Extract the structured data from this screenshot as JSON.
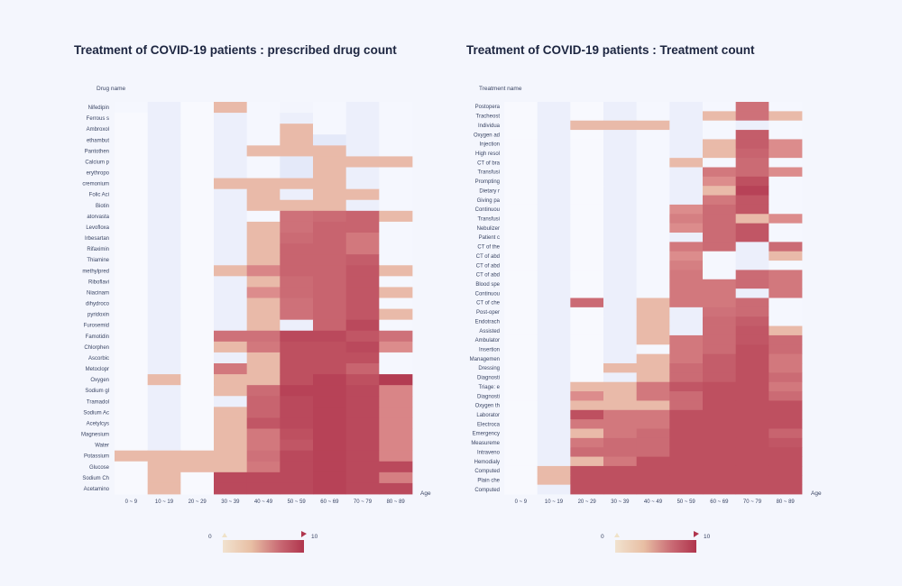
{
  "chart_data": [
    {
      "type": "heatmap",
      "title": "Treatment of COVID-19 patients : prescribed drug count",
      "ylabel": "Drug name",
      "xlabel": "Age",
      "colorbar": {
        "min": 0,
        "max": 10,
        "colors": [
          "#dde3f7",
          "#ecd0b7",
          "#b0354d"
        ]
      },
      "columns": [
        "0 ~ 9",
        "10 ~ 19",
        "20 ~ 29",
        "30 ~ 39",
        "40 ~ 49",
        "50 ~ 59",
        "60 ~ 69",
        "70 ~ 79",
        "80 ~ 89"
      ],
      "rows": [
        "Nifedipin",
        "Ferrous s",
        "Ambroxol",
        "ethambut",
        "Pantothen",
        "Calcium p",
        "erythropo",
        "cremonium",
        "Folic Aci",
        "Biotin",
        "atorvasta",
        "Levofloxa",
        "Irbesartan",
        "Rifaximin",
        "Thiamine",
        "methylpred",
        "Riboflavi",
        "Niacinam",
        "dihydroco",
        "pyridoxin",
        "Furosemid",
        "Famotidin",
        "Chlorphen",
        "Ascorbic",
        "Metoclopr",
        "Oxygen",
        "Sodium gl",
        "Tramadol",
        "Sodium Ac",
        "Acetylcys",
        "Magnesium",
        "Water",
        "Potassium",
        "Glucose",
        "Sodium Ch",
        "Acetamino"
      ],
      "values": [
        [
          0.2,
          0.6,
          0.1,
          3.0,
          0.2,
          0.3,
          0.2,
          0.6,
          0.2
        ],
        [
          0.1,
          0.6,
          0.1,
          0.6,
          0.2,
          0.6,
          0.2,
          0.6,
          0.2
        ],
        [
          0.1,
          0.6,
          0.1,
          0.6,
          0.2,
          3.0,
          0.2,
          0.6,
          0.2
        ],
        [
          0.1,
          0.6,
          0.1,
          0.6,
          0.2,
          3.0,
          0.9,
          0.6,
          0.2
        ],
        [
          0.1,
          0.6,
          0.1,
          0.6,
          2.9,
          3.0,
          3.0,
          0.6,
          0.2
        ],
        [
          0.1,
          0.6,
          0.1,
          0.6,
          0.2,
          0.9,
          3.0,
          3.0,
          3.0
        ],
        [
          0.1,
          0.6,
          0.1,
          0.6,
          0.2,
          0.9,
          3.0,
          0.6,
          0.2
        ],
        [
          0.1,
          0.6,
          0.1,
          3.0,
          3.0,
          3.0,
          3.0,
          0.6,
          0.2
        ],
        [
          0.1,
          0.6,
          0.1,
          0.6,
          3.0,
          0.6,
          3.0,
          3.0,
          0.2
        ],
        [
          0.1,
          0.6,
          0.1,
          0.6,
          3.0,
          3.0,
          3.0,
          0.6,
          0.2
        ],
        [
          0.1,
          0.6,
          0.1,
          0.6,
          0.2,
          5.5,
          6.0,
          6.5,
          3.0
        ],
        [
          0.1,
          0.6,
          0.1,
          0.6,
          3.0,
          5.5,
          6.5,
          6.5,
          0.2
        ],
        [
          0.1,
          0.6,
          0.1,
          0.6,
          3.0,
          6.0,
          6.5,
          5.0,
          0.2
        ],
        [
          0.1,
          0.6,
          0.1,
          0.6,
          3.0,
          6.5,
          6.5,
          5.0,
          0.2
        ],
        [
          0.1,
          0.6,
          0.1,
          0.6,
          3.0,
          6.5,
          6.5,
          7.0,
          0.2
        ],
        [
          0.1,
          0.6,
          0.1,
          3.0,
          4.0,
          6.5,
          6.5,
          7.5,
          3.0
        ],
        [
          0.1,
          0.6,
          0.1,
          0.6,
          3.0,
          6.0,
          6.5,
          7.5,
          0.2
        ],
        [
          0.1,
          0.6,
          0.1,
          0.6,
          3.5,
          6.0,
          6.5,
          7.5,
          3.0
        ],
        [
          0.1,
          0.6,
          0.1,
          0.6,
          3.0,
          5.5,
          6.5,
          7.5,
          0.2
        ],
        [
          0.1,
          0.6,
          0.1,
          0.6,
          3.0,
          5.5,
          6.5,
          7.5,
          3.0
        ],
        [
          0.1,
          0.6,
          0.1,
          0.6,
          3.0,
          0.6,
          6.5,
          8.5,
          0.2
        ],
        [
          0.1,
          0.6,
          0.1,
          5.5,
          5.5,
          8.5,
          8.5,
          7.5,
          5.5
        ],
        [
          0.1,
          0.6,
          0.1,
          3.0,
          5.0,
          8.0,
          8.0,
          8.5,
          3.5
        ],
        [
          0.1,
          0.6,
          0.1,
          0.6,
          3.0,
          8.0,
          8.0,
          8.0,
          0.2
        ],
        [
          0.1,
          0.6,
          0.1,
          5.0,
          3.0,
          8.0,
          8.0,
          6.5,
          0.2
        ],
        [
          0.1,
          3.0,
          0.1,
          3.0,
          3.0,
          8.0,
          9.0,
          8.0,
          9.5
        ],
        [
          0.1,
          0.6,
          0.1,
          3.0,
          6.0,
          9.0,
          9.0,
          8.5,
          4.0
        ],
        [
          0.1,
          0.6,
          0.1,
          0.6,
          6.5,
          8.5,
          9.0,
          8.5,
          4.0
        ],
        [
          0.1,
          0.6,
          0.1,
          3.0,
          6.5,
          8.5,
          9.0,
          8.5,
          4.0
        ],
        [
          0.1,
          0.6,
          0.1,
          3.0,
          7.5,
          8.5,
          9.0,
          8.5,
          4.0
        ],
        [
          0.1,
          0.6,
          0.1,
          3.0,
          5.0,
          8.0,
          9.0,
          8.5,
          4.0
        ],
        [
          0.1,
          0.6,
          0.1,
          3.0,
          5.0,
          7.5,
          9.0,
          8.5,
          4.0
        ],
        [
          3.0,
          3.0,
          3.0,
          3.0,
          5.5,
          8.5,
          9.0,
          8.5,
          4.0
        ],
        [
          0.1,
          3.0,
          3.0,
          3.0,
          5.0,
          8.5,
          9.0,
          8.5,
          8.5
        ],
        [
          0.1,
          3.0,
          0.1,
          8.5,
          8.5,
          8.5,
          9.0,
          8.5,
          4.5
        ],
        [
          0.1,
          3.0,
          0.1,
          8.5,
          8.5,
          8.5,
          9.0,
          8.5,
          8.5
        ]
      ]
    },
    {
      "type": "heatmap",
      "title": "Treatment of COVID-19 patients : Treatment count",
      "ylabel": "Treatment name",
      "xlabel": "Age",
      "colorbar": {
        "min": 0,
        "max": 10,
        "colors": [
          "#dde3f7",
          "#ecd0b7",
          "#b0354d"
        ]
      },
      "columns": [
        "0 ~ 9",
        "10 ~ 19",
        "20 ~ 29",
        "30 ~ 39",
        "40 ~ 49",
        "50 ~ 59",
        "60 ~ 69",
        "70 ~ 79",
        "80 ~ 89"
      ],
      "rows": [
        "Postopera",
        "Tracheost",
        "Individua",
        "Oxygen ad",
        "Injection",
        "High resol",
        "CT of bra",
        "Transfusi",
        "Prompting",
        "Dietary r",
        "Giving pa",
        "Continuou",
        "Transfusi",
        "Nebulizer",
        "Patient c",
        "CT of the",
        "CT of abd",
        "CT of abd",
        "CT of abd",
        "Blood spe",
        "Continuou",
        "CT of che",
        "Post-oper",
        "Endotrach",
        "Assisted",
        "Ambulator",
        "Insertion",
        "Managemen",
        "Dressing",
        "Diagnosti",
        "Triage: e",
        "Diagnosti",
        "Oxygen th",
        "Laborator",
        "Electroca",
        "Emergency",
        "Measureme",
        "Intraveno",
        "Hemodialy",
        "Computed",
        "Plain che",
        "Computed"
      ],
      "values": [
        [
          0.1,
          0.6,
          0.1,
          0.6,
          0.2,
          0.6,
          0.2,
          5.5,
          0.2
        ],
        [
          0.1,
          0.6,
          0.1,
          0.6,
          0.2,
          0.6,
          3.0,
          5.5,
          3.0
        ],
        [
          0.1,
          0.6,
          3.0,
          3.0,
          3.0,
          0.6,
          0.2,
          0.6,
          0.2
        ],
        [
          0.1,
          0.6,
          0.1,
          0.6,
          0.2,
          0.6,
          0.2,
          7.0,
          0.2
        ],
        [
          0.1,
          0.6,
          0.1,
          0.6,
          0.2,
          0.6,
          3.0,
          7.0,
          3.5
        ],
        [
          0.1,
          0.6,
          0.1,
          0.6,
          0.2,
          0.6,
          3.0,
          6.5,
          3.5
        ],
        [
          0.1,
          0.6,
          0.1,
          0.6,
          0.2,
          3.0,
          0.2,
          6.0,
          0.2
        ],
        [
          0.1,
          0.6,
          0.1,
          0.6,
          0.2,
          0.6,
          5.0,
          6.0,
          3.5
        ],
        [
          0.1,
          0.6,
          0.1,
          0.6,
          0.2,
          0.6,
          3.5,
          8.0,
          0.2
        ],
        [
          0.1,
          0.6,
          0.1,
          0.6,
          0.2,
          0.6,
          3.0,
          9.0,
          0.2
        ],
        [
          0.1,
          0.6,
          0.1,
          0.6,
          0.2,
          0.6,
          5.0,
          7.5,
          0.2
        ],
        [
          0.1,
          0.6,
          0.1,
          0.6,
          0.2,
          3.5,
          6.0,
          7.5,
          0.2
        ],
        [
          0.1,
          0.6,
          0.1,
          0.6,
          0.2,
          4.5,
          6.0,
          3.0,
          3.5
        ],
        [
          0.1,
          0.6,
          0.1,
          0.6,
          0.2,
          3.5,
          6.0,
          7.5,
          0.2
        ],
        [
          0.1,
          0.6,
          0.1,
          0.6,
          0.2,
          0.6,
          6.0,
          7.5,
          0.2
        ],
        [
          0.1,
          0.6,
          0.1,
          0.6,
          0.2,
          5.0,
          6.0,
          0.6,
          6.0
        ],
        [
          0.1,
          0.6,
          0.1,
          0.6,
          0.2,
          3.5,
          0.2,
          0.6,
          3.0
        ],
        [
          0.1,
          0.6,
          0.1,
          0.6,
          0.2,
          4.5,
          0.2,
          0.6,
          0.2
        ],
        [
          0.1,
          0.6,
          0.1,
          0.6,
          0.2,
          5.0,
          0.2,
          6.0,
          5.0
        ],
        [
          0.1,
          0.6,
          0.1,
          0.6,
          0.2,
          5.0,
          5.0,
          6.0,
          5.0
        ],
        [
          0.1,
          0.6,
          0.1,
          0.6,
          0.2,
          5.0,
          5.0,
          0.6,
          5.0
        ],
        [
          0.1,
          0.6,
          6.0,
          0.6,
          3.0,
          5.0,
          5.0,
          6.0,
          0.2
        ],
        [
          0.1,
          0.6,
          0.1,
          0.6,
          3.0,
          0.6,
          5.5,
          6.0,
          0.2
        ],
        [
          0.1,
          0.6,
          0.1,
          0.6,
          3.0,
          0.6,
          6.0,
          7.0,
          0.2
        ],
        [
          0.1,
          0.6,
          0.1,
          0.6,
          3.0,
          0.6,
          6.0,
          7.5,
          3.0
        ],
        [
          0.1,
          0.6,
          0.1,
          0.6,
          3.0,
          5.0,
          6.0,
          7.5,
          6.0
        ],
        [
          0.1,
          0.6,
          0.1,
          0.6,
          0.2,
          5.0,
          6.0,
          8.0,
          6.0
        ],
        [
          0.1,
          0.6,
          0.1,
          0.6,
          3.0,
          5.0,
          7.0,
          8.0,
          5.0
        ],
        [
          0.1,
          0.6,
          0.1,
          3.0,
          3.0,
          6.0,
          7.0,
          8.0,
          5.0
        ],
        [
          0.1,
          0.6,
          0.1,
          0.6,
          3.0,
          6.0,
          7.0,
          8.0,
          6.0
        ],
        [
          0.1,
          0.6,
          3.0,
          3.0,
          5.0,
          7.5,
          8.0,
          8.0,
          5.0
        ],
        [
          0.1,
          0.6,
          3.5,
          3.0,
          5.0,
          6.0,
          8.0,
          8.0,
          6.0
        ],
        [
          0.1,
          0.6,
          3.0,
          3.0,
          3.0,
          6.0,
          8.0,
          8.0,
          8.0
        ],
        [
          0.1,
          0.6,
          8.0,
          5.0,
          5.0,
          8.0,
          8.0,
          8.0,
          8.0
        ],
        [
          0.1,
          0.6,
          5.0,
          5.0,
          5.0,
          8.0,
          8.0,
          8.0,
          8.0
        ],
        [
          0.1,
          0.6,
          3.0,
          5.0,
          6.0,
          8.0,
          8.0,
          8.0,
          6.5
        ],
        [
          0.1,
          0.6,
          5.0,
          6.0,
          6.0,
          8.0,
          8.0,
          8.0,
          7.5
        ],
        [
          0.1,
          0.6,
          6.0,
          6.0,
          6.0,
          8.0,
          8.0,
          8.0,
          8.0
        ],
        [
          0.1,
          0.6,
          3.0,
          5.0,
          8.0,
          8.0,
          8.0,
          8.0,
          8.0
        ],
        [
          0.1,
          3.0,
          8.0,
          8.0,
          8.0,
          8.0,
          8.0,
          8.0,
          8.0
        ],
        [
          0.1,
          3.0,
          8.0,
          8.0,
          8.0,
          8.0,
          8.0,
          8.0,
          8.0
        ],
        [
          0.1,
          0.6,
          8.0,
          8.0,
          8.0,
          8.0,
          8.0,
          8.0,
          8.0
        ]
      ]
    }
  ]
}
